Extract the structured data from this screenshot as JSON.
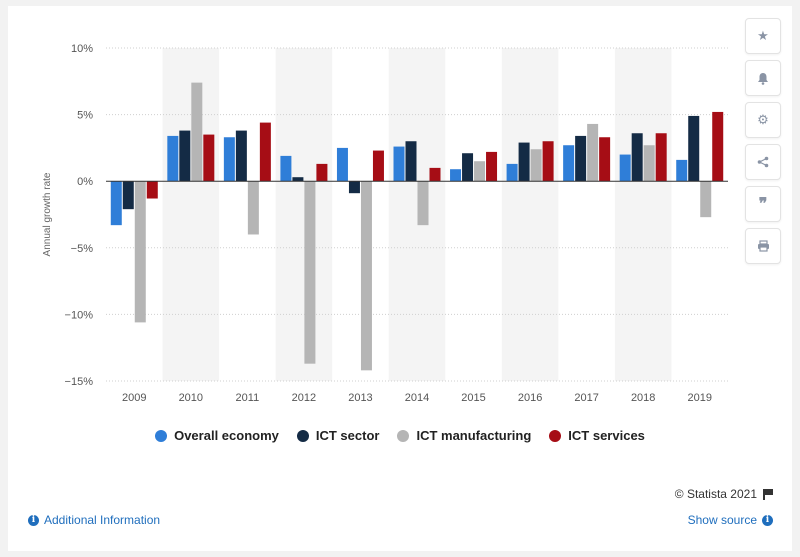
{
  "chart_data": {
    "type": "bar",
    "categories": [
      "2009",
      "2010",
      "2011",
      "2012",
      "2013",
      "2014",
      "2015",
      "2016",
      "2017",
      "2018",
      "2019"
    ],
    "series": [
      {
        "name": "Overall economy",
        "color": "#2f7ed8",
        "values": [
          -3.3,
          3.4,
          3.3,
          1.9,
          2.5,
          2.6,
          0.9,
          1.3,
          2.7,
          2.0,
          1.6
        ]
      },
      {
        "name": "ICT sector",
        "color": "#142b45",
        "values": [
          -2.1,
          3.8,
          3.8,
          0.3,
          -0.9,
          3.0,
          2.1,
          2.9,
          3.4,
          3.6,
          4.9
        ]
      },
      {
        "name": "ICT manufacturing",
        "color": "#b5b5b5",
        "values": [
          -10.6,
          7.4,
          -4.0,
          -13.7,
          -14.2,
          -3.3,
          1.5,
          2.4,
          4.3,
          2.7,
          -2.7
        ]
      },
      {
        "name": "ICT services",
        "color": "#a60d15",
        "values": [
          -1.3,
          3.5,
          4.4,
          1.3,
          2.3,
          1.0,
          2.2,
          3.0,
          3.3,
          3.6,
          5.2
        ]
      }
    ],
    "ylabel": "Annual growth rate",
    "xlabel": "",
    "ylim": [
      -15,
      10
    ],
    "yticks": [
      "10%",
      "5%",
      "0%",
      "−5%",
      "−10%",
      "−15%"
    ],
    "grid": true,
    "legend_position": "bottom"
  },
  "legend": {
    "items": [
      {
        "label": "Overall economy",
        "color": "#2f7ed8"
      },
      {
        "label": "ICT sector",
        "color": "#142b45"
      },
      {
        "label": "ICT manufacturing",
        "color": "#b5b5b5"
      },
      {
        "label": "ICT services",
        "color": "#a60d15"
      }
    ]
  },
  "toolbar": {
    "icons": [
      "star-icon",
      "bell-icon",
      "gear-icon",
      "share-icon",
      "quote-icon",
      "print-icon"
    ]
  },
  "footer": {
    "credits": "© Statista 2021",
    "additional_info": "Additional Information",
    "show_source": "Show source"
  }
}
